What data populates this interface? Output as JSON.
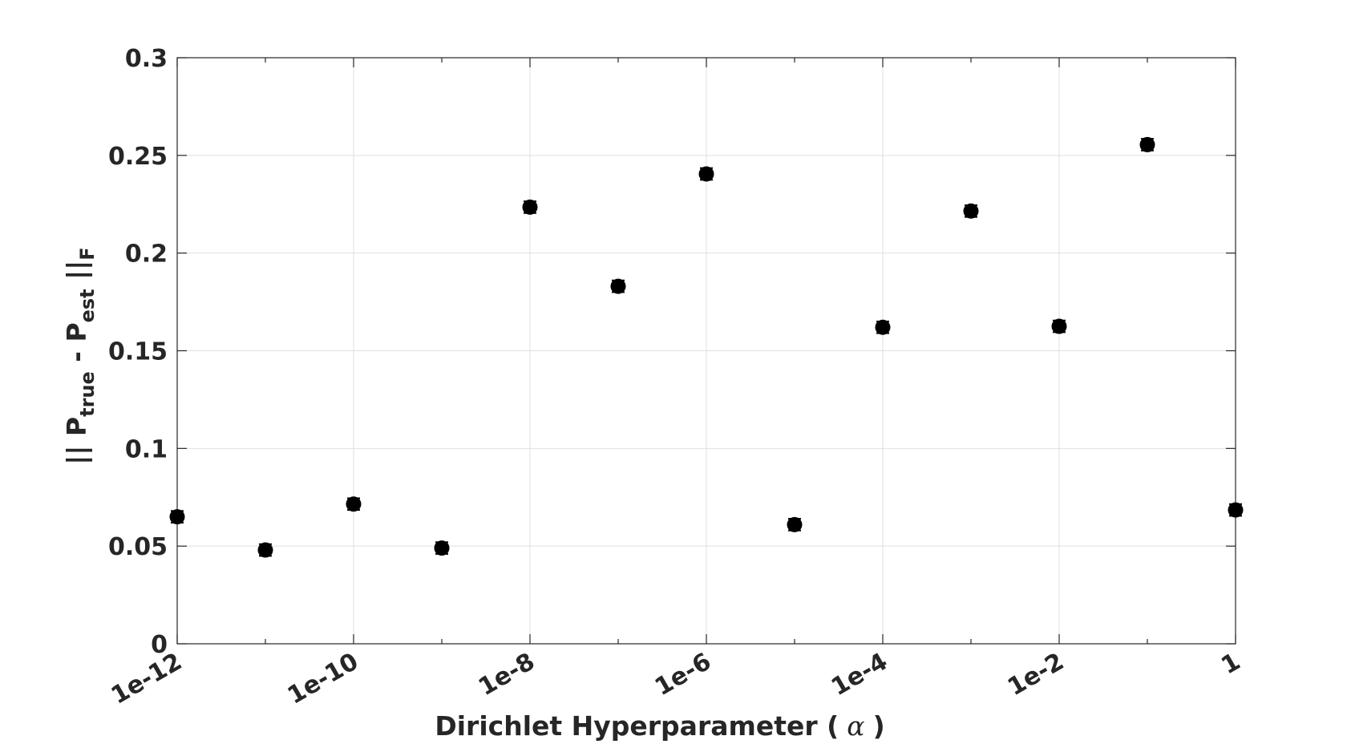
{
  "chart_data": {
    "type": "scatter",
    "title": "",
    "xlabel": "Dirichlet Hyperparameter (",
    "xlabel_symbol": "α",
    "xlabel_close": ")",
    "ylabel": {
      "prefix": "|| P",
      "sub1": "true",
      "middle": " - P",
      "sub2": "est",
      "suffix": " ||",
      "sub3": "F"
    },
    "x_scale": "log",
    "xlim": [
      1e-12,
      1
    ],
    "ylim": [
      0,
      0.3
    ],
    "grid": true,
    "x_ticks": [
      {
        "value": 1e-12,
        "label": "1e-12"
      },
      {
        "value": 1e-10,
        "label": "1e-10"
      },
      {
        "value": 1e-08,
        "label": "1e-8"
      },
      {
        "value": 1e-06,
        "label": "1e-6"
      },
      {
        "value": 0.0001,
        "label": "1e-4"
      },
      {
        "value": 0.01,
        "label": "1e-2"
      },
      {
        "value": 1,
        "label": "1"
      }
    ],
    "x_minor_ticks": [
      1e-11,
      1e-09,
      1e-07,
      1e-05,
      0.001,
      0.1
    ],
    "y_ticks": [
      {
        "value": 0,
        "label": "0"
      },
      {
        "value": 0.05,
        "label": "0.05"
      },
      {
        "value": 0.1,
        "label": "0.1"
      },
      {
        "value": 0.15,
        "label": "0.15"
      },
      {
        "value": 0.2,
        "label": "0.2"
      },
      {
        "value": 0.25,
        "label": "0.25"
      },
      {
        "value": 0.3,
        "label": "0.3"
      }
    ],
    "marker_color": "#000000",
    "points": [
      {
        "x": 1e-12,
        "y": 0.065,
        "err": 0.003
      },
      {
        "x": 1e-11,
        "y": 0.048,
        "err": 0.003
      },
      {
        "x": 1e-10,
        "y": 0.0715,
        "err": 0.003
      },
      {
        "x": 1e-09,
        "y": 0.049,
        "err": 0.003
      },
      {
        "x": 1e-08,
        "y": 0.2235,
        "err": 0.003
      },
      {
        "x": 1e-07,
        "y": 0.183,
        "err": 0.003
      },
      {
        "x": 1e-06,
        "y": 0.2405,
        "err": 0.003
      },
      {
        "x": 1e-05,
        "y": 0.061,
        "err": 0.003
      },
      {
        "x": 0.0001,
        "y": 0.162,
        "err": 0.003
      },
      {
        "x": 0.001,
        "y": 0.2215,
        "err": 0.003
      },
      {
        "x": 0.01,
        "y": 0.1625,
        "err": 0.003
      },
      {
        "x": 0.1,
        "y": 0.2555,
        "err": 0.003
      },
      {
        "x": 1,
        "y": 0.0685,
        "err": 0.003
      }
    ]
  }
}
